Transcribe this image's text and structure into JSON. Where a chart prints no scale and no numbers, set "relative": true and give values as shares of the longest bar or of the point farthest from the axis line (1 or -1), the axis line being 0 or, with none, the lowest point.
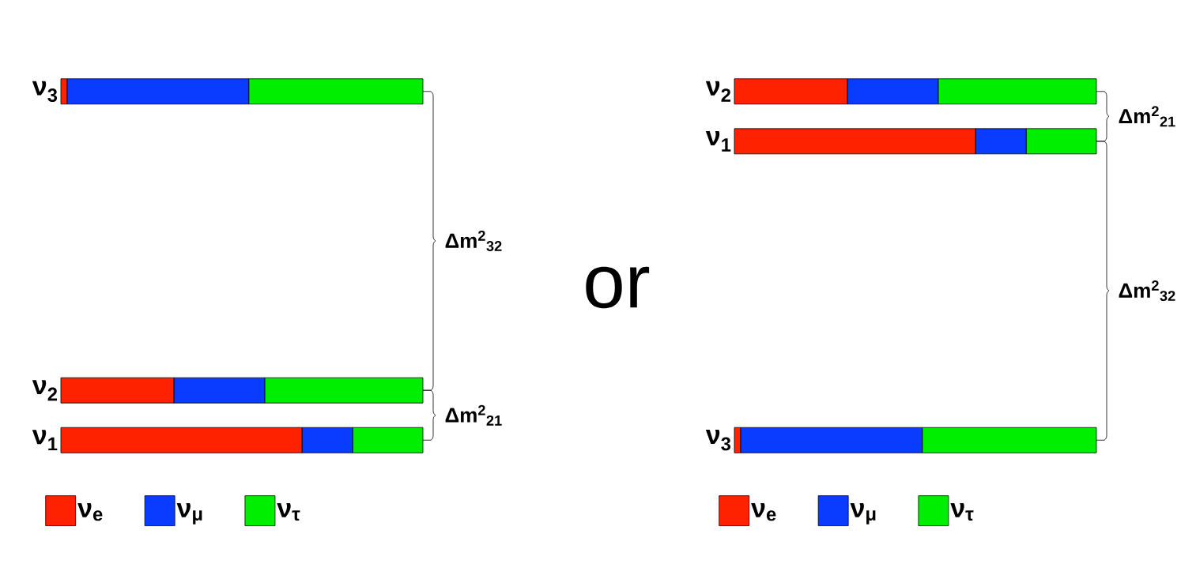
{
  "chart_data": [
    {
      "type": "bar",
      "orientation": "horizontal",
      "stacked": true,
      "relative": true,
      "legend": "bottom",
      "categories": [
        "ν$_{3}$",
        null,
        null,
        null,
        null,
        null,
        "ν$_{2}$",
        "ν$_{1}$"
      ],
      "series": [
        {
          "name": "ν$_{e}$",
          "color": "#ff2200",
          "values": [
            0.017,
            null,
            null,
            null,
            null,
            null,
            0.312,
            0.666
          ]
        },
        {
          "name": "ν$_{μ}$",
          "color": "#0a3cff",
          "values": [
            0.502,
            null,
            null,
            null,
            null,
            null,
            0.251,
            0.14
          ]
        },
        {
          "name": "ν$_{τ}$",
          "color": "#00ee00",
          "values": [
            0.481,
            null,
            null,
            null,
            null,
            null,
            0.437,
            0.194
          ]
        }
      ],
      "annotations": [
        "Δm$^{2}$$_{32}$",
        "Δm$^{2}$$_{21}$"
      ]
    },
    {
      "type": "other",
      "annotations": [
        "or"
      ]
    },
    {
      "type": "bar",
      "orientation": "horizontal",
      "stacked": true,
      "relative": true,
      "legend": "bottom",
      "categories": [
        "ν$_{2}$",
        "ν$_{1}$",
        null,
        null,
        null,
        null,
        null,
        "ν$_{3}$"
      ],
      "series": [
        {
          "name": "ν$_{e}$",
          "color": "#ff2200",
          "values": [
            0.312,
            0.666,
            null,
            null,
            null,
            null,
            null,
            0.017
          ]
        },
        {
          "name": "ν$_{μ}$",
          "color": "#0a3cff",
          "values": [
            0.251,
            0.14,
            null,
            null,
            null,
            null,
            null,
            0.502
          ]
        },
        {
          "name": "ν$_{τ}$",
          "color": "#00ee00",
          "values": [
            0.437,
            0.194,
            null,
            null,
            null,
            null,
            null,
            0.481
          ]
        }
      ],
      "annotations": [
        "Δm$^{2}$$_{21}$",
        "Δm$^{2}$$_{32}$"
      ]
    }
  ]
}
